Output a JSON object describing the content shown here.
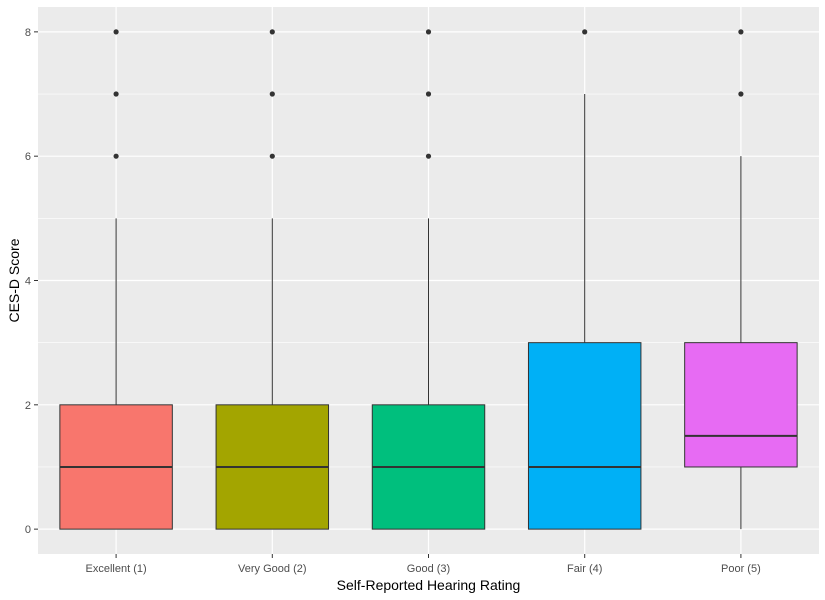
{
  "chart_data": {
    "type": "boxplot",
    "title": "",
    "xlabel": "Self-Reported Hearing Rating",
    "ylabel": "CES-D Score",
    "ylim": [
      -0.4,
      8.4
    ],
    "yticks": [
      0,
      2,
      4,
      6,
      8
    ],
    "grid": true,
    "legend": "none",
    "categories": [
      "Excellent (1)",
      "Very Good (2)",
      "Good (3)",
      "Fair (4)",
      "Poor (5)"
    ],
    "boxes": [
      {
        "category": "Excellent (1)",
        "color": "#F8766D",
        "lower_whisker": 0,
        "q1": 0,
        "median": 1,
        "q3": 2,
        "upper_whisker": 5,
        "outliers": [
          6,
          7,
          8
        ]
      },
      {
        "category": "Very Good (2)",
        "color": "#A3A500",
        "lower_whisker": 0,
        "q1": 0,
        "median": 1,
        "q3": 2,
        "upper_whisker": 5,
        "outliers": [
          6,
          7,
          8
        ]
      },
      {
        "category": "Good (3)",
        "color": "#00BF7D",
        "lower_whisker": 0,
        "q1": 0,
        "median": 1,
        "q3": 2,
        "upper_whisker": 5,
        "outliers": [
          6,
          7,
          8
        ]
      },
      {
        "category": "Fair (4)",
        "color": "#00B0F6",
        "lower_whisker": 0,
        "q1": 0,
        "median": 1,
        "q3": 3,
        "upper_whisker": 7,
        "outliers": [
          8
        ]
      },
      {
        "category": "Poor (5)",
        "color": "#E76BF3",
        "lower_whisker": 0,
        "q1": 1,
        "median": 1.5,
        "q3": 3,
        "upper_whisker": 6,
        "outliers": [
          7,
          8
        ]
      }
    ],
    "colors": {
      "panel_background": "#EBEBEB",
      "grid_line": "#FFFFFF",
      "box_stroke": "#333333",
      "whisker": "#333333",
      "outlier": "#333333",
      "axis_text": "#4D4D4D"
    }
  }
}
